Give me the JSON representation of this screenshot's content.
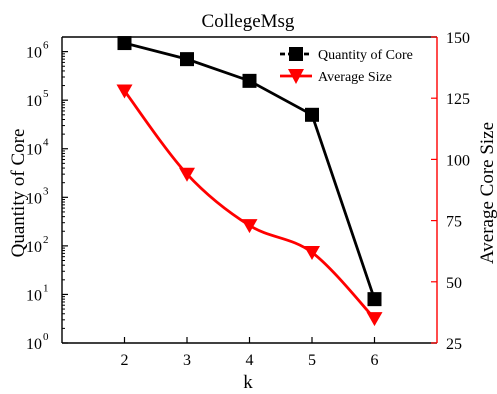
{
  "chart_data": {
    "type": "line",
    "title": "CollegeMsg",
    "xlabel": "k",
    "ylabel_left": "Quantity of Core",
    "ylabel_right": "Average Core Size",
    "x": [
      2,
      3,
      4,
      5,
      6
    ],
    "x_ticks": [
      "2",
      "3",
      "4",
      "5",
      "6"
    ],
    "xlim": [
      1,
      7
    ],
    "y_left": {
      "scale": "log",
      "ylim": [
        1,
        2000000
      ],
      "ticks": [
        {
          "value": 1,
          "base": "10",
          "exp": "0"
        },
        {
          "value": 10,
          "base": "10",
          "exp": "1"
        },
        {
          "value": 100,
          "base": "10",
          "exp": "2"
        },
        {
          "value": 1000,
          "base": "10",
          "exp": "3"
        },
        {
          "value": 10000,
          "base": "10",
          "exp": "4"
        },
        {
          "value": 100000,
          "base": "10",
          "exp": "5"
        },
        {
          "value": 1000000,
          "base": "10",
          "exp": "6"
        }
      ]
    },
    "y_right": {
      "scale": "linear",
      "ylim": [
        25,
        150
      ],
      "ticks": [
        "25",
        "50",
        "75",
        "100",
        "125",
        "150"
      ],
      "color": "#ff0000"
    },
    "series": [
      {
        "name": "Quantity of Core",
        "axis": "left",
        "values": [
          1500000,
          700000,
          250000,
          50000,
          8
        ],
        "color": "#000000",
        "marker": "square"
      },
      {
        "name": "Average Size",
        "axis": "right",
        "values": [
          128,
          94,
          73,
          62,
          35
        ],
        "color": "#ff0000",
        "marker": "triangle-down",
        "smooth": true
      }
    ],
    "legend_position": "top-right",
    "grid": false
  }
}
